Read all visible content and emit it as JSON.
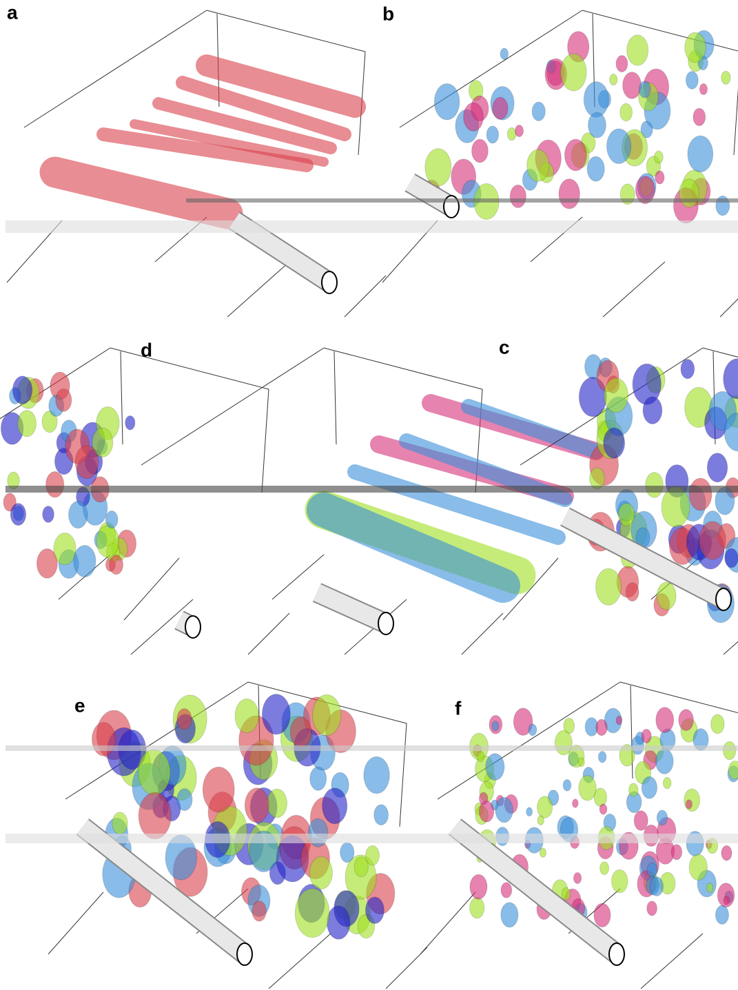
{
  "panels": [
    {
      "label": "a"
    },
    {
      "label": "b"
    },
    {
      "label": "d"
    },
    {
      "label": "c"
    },
    {
      "label": "e"
    },
    {
      "label": "f"
    }
  ]
}
